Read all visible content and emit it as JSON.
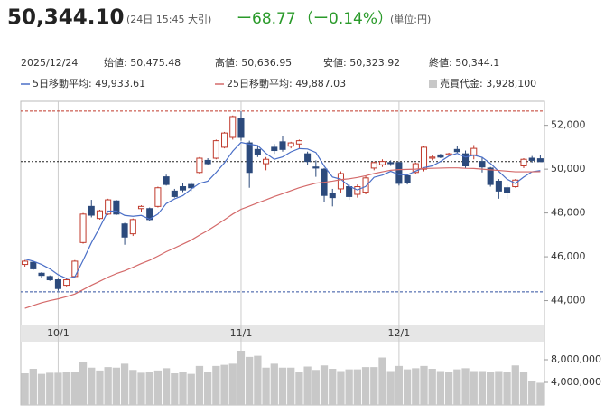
{
  "header": {
    "price": "50,344.10",
    "time": "(24日 15:45 大引)",
    "change": "ー68.77",
    "change_pct": "（ー0.14%）",
    "unit": "(単位:円)",
    "date": "2025/12/24",
    "open": "始値: 50,475.48",
    "high": "高値: 50,636.95",
    "low": "安値: 50,323.92",
    "close": "終値: 50,344.1"
  },
  "chart_data": {
    "type": "candlestick",
    "categories": [
      null,
      null,
      null,
      null,
      "10/1",
      null,
      null,
      null,
      null,
      null,
      null,
      null,
      null,
      null,
      null,
      null,
      null,
      null,
      null,
      null,
      null,
      null,
      null,
      null,
      null,
      null,
      "11/1",
      null,
      null,
      null,
      null,
      null,
      null,
      null,
      null,
      null,
      null,
      null,
      null,
      null,
      null,
      null,
      null,
      null,
      null,
      "12/1",
      null,
      null,
      null,
      null,
      null,
      null,
      null,
      null,
      null,
      null,
      null,
      null,
      null,
      null,
      null,
      null,
      null
    ],
    "open": [
      45650,
      45750,
      45250,
      45100,
      44950,
      44700,
      45100,
      46650,
      48300,
      47750,
      47950,
      48550,
      47500,
      47050,
      48200,
      48200,
      48300,
      49650,
      49000,
      49200,
      49300,
      49850,
      50400,
      50500,
      51000,
      51450,
      52300,
      51200,
      50900,
      50250,
      51000,
      51250,
      51050,
      51150,
      50700,
      50100,
      50000,
      48900,
      49100,
      49200,
      48850,
      48950,
      50050,
      50200,
      50300,
      50300,
      49700,
      49850,
      50000,
      50500,
      50650,
      50650,
      50900,
      50700,
      50650,
      50350,
      50050,
      49450,
      49150,
      49200,
      50150,
      50500,
      50475.48
    ],
    "high": [
      45850,
      45800,
      45300,
      45150,
      45000,
      45000,
      45850,
      48000,
      48600,
      48150,
      48650,
      48600,
      47550,
      47750,
      48350,
      48250,
      49200,
      49750,
      49100,
      49350,
      49400,
      50550,
      50500,
      51350,
      51700,
      52450,
      52650,
      51300,
      51100,
      50550,
      51150,
      51500,
      51250,
      51350,
      50800,
      50400,
      50050,
      49100,
      49900,
      49300,
      49300,
      49700,
      50350,
      50450,
      50400,
      50350,
      49750,
      50300,
      51050,
      50650,
      50700,
      50750,
      51050,
      50850,
      51100,
      50550,
      50100,
      49550,
      49300,
      49550,
      50500,
      50600,
      50636.95
    ],
    "low": [
      45550,
      45400,
      45050,
      44900,
      44450,
      44650,
      45050,
      46600,
      47800,
      47700,
      47900,
      47900,
      46550,
      46950,
      48050,
      47650,
      48250,
      49250,
      48700,
      48950,
      49000,
      49800,
      50200,
      50450,
      50950,
      51350,
      51300,
      49150,
      50550,
      49950,
      50700,
      50800,
      50950,
      50950,
      50200,
      49650,
      48500,
      48300,
      48900,
      48600,
      48700,
      48850,
      49950,
      50100,
      50150,
      49250,
      49300,
      49800,
      49900,
      50400,
      50500,
      50600,
      50750,
      50050,
      50450,
      49850,
      49200,
      48650,
      48650,
      49150,
      50050,
      50300,
      50323.92
    ],
    "close": [
      45800,
      45450,
      45150,
      44950,
      44550,
      44950,
      45800,
      47950,
      47900,
      48100,
      48600,
      47950,
      46900,
      47700,
      48300,
      47700,
      49150,
      49300,
      48750,
      49050,
      49150,
      50500,
      50250,
      51300,
      51650,
      52400,
      51450,
      49850,
      50650,
      50450,
      50850,
      50900,
      51200,
      51300,
      50350,
      50050,
      48800,
      48700,
      49800,
      48750,
      49200,
      49600,
      50300,
      50350,
      50250,
      49350,
      49400,
      50250,
      51000,
      50550,
      50550,
      50700,
      50800,
      50150,
      50950,
      50100,
      49300,
      49000,
      48950,
      49500,
      50450,
      50400,
      50344.1
    ],
    "up_color": "#c0392b",
    "down_color": "#2c4a7c",
    "series": [
      {
        "name": "5日移動平均: 49,933.61",
        "color": "#4a6fc7",
        "values": [
          45900,
          45800,
          45650,
          45450,
          45180,
          45010,
          45080,
          45840,
          46640,
          47340,
          48090,
          48090,
          47890,
          47850,
          47890,
          47720,
          47950,
          48430,
          48640,
          48790,
          49090,
          49350,
          49450,
          49850,
          50290,
          50820,
          51220,
          51140,
          51080,
          50720,
          50450,
          50560,
          50790,
          50940,
          50920,
          50760,
          50140,
          49640,
          49540,
          49220,
          49050,
          49210,
          49630,
          49730,
          49900,
          49750,
          49740,
          49910,
          50070,
          50150,
          50350,
          50600,
          50720,
          50550,
          50640,
          50540,
          50260,
          49900,
          49540,
          49350,
          49640,
          49880,
          49933.61
        ]
      },
      {
        "name": "25日移動平均: 49,887.03",
        "color": "#d46a6a",
        "values": [
          43650,
          43780,
          43900,
          44000,
          44080,
          44180,
          44300,
          44500,
          44700,
          44880,
          45070,
          45230,
          45360,
          45520,
          45690,
          45840,
          46030,
          46230,
          46400,
          46580,
          46760,
          46990,
          47200,
          47440,
          47690,
          47950,
          48170,
          48310,
          48460,
          48600,
          48750,
          48880,
          49020,
          49150,
          49260,
          49360,
          49400,
          49450,
          49520,
          49560,
          49620,
          49700,
          49800,
          49880,
          49950,
          49980,
          49990,
          50000,
          50030,
          50040,
          50050,
          50060,
          50060,
          50040,
          50030,
          50000,
          49970,
          49940,
          49910,
          49880,
          49880,
          49880,
          49887.03
        ]
      }
    ],
    "ylim": [
      42950,
      53100
    ],
    "yticks": [
      {
        "value": 44000,
        "label": "44,000"
      },
      {
        "value": 46000,
        "label": "46,000"
      },
      {
        "value": 48000,
        "label": "48,000"
      },
      {
        "value": 50000,
        "label": "50,000"
      },
      {
        "value": 52000,
        "label": "52,000"
      }
    ],
    "reference_lines": [
      {
        "value": 52650,
        "color": "#c0392b"
      },
      {
        "value": 44400,
        "color": "#3050a0"
      }
    ],
    "volume": {
      "name": "売買代金: 3,928,100",
      "color": "#c8c8c8",
      "values": [
        5600000,
        6400000,
        5500000,
        5700000,
        5700000,
        5900000,
        5800000,
        7600000,
        6600000,
        6100000,
        6700000,
        6600000,
        7300000,
        6200000,
        5700000,
        5900000,
        6100000,
        6500000,
        5600000,
        5900000,
        5500000,
        6900000,
        5900000,
        6900000,
        7100000,
        7300000,
        9600000,
        8500000,
        8700000,
        6600000,
        7300000,
        6600000,
        6600000,
        5800000,
        6800000,
        6200000,
        7000000,
        6400000,
        6000000,
        6300000,
        6300000,
        6700000,
        6700000,
        8400000,
        6000000,
        6900000,
        6300000,
        6500000,
        6900000,
        6400000,
        6000000,
        5900000,
        6300000,
        6500000,
        6000000,
        6000000,
        5800000,
        6000000,
        5800000,
        7000000,
        5900000,
        4200000,
        3928100
      ],
      "ylim": [
        0,
        11200000
      ],
      "yticks": [
        {
          "value": 4000000,
          "label": "4,000,000"
        },
        {
          "value": 8000000,
          "label": "8,000,000"
        }
      ]
    }
  }
}
